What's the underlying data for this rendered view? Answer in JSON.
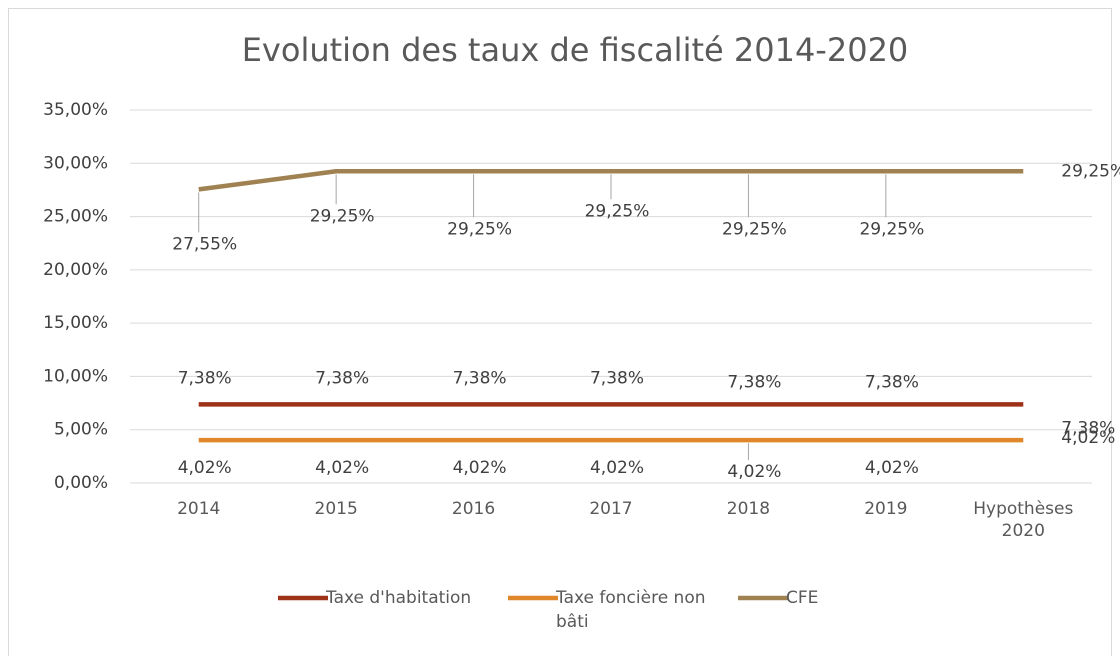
{
  "chart_data": {
    "type": "line",
    "title": "Evolution des taux de fiscalité 2014-2020",
    "categories": [
      "2014",
      "2015",
      "2016",
      "2017",
      "2018",
      "2019",
      "Hypothèses 2020"
    ],
    "series": [
      {
        "name": "Taxe d'habitation",
        "color": "#9e3218",
        "values": [
          7.38,
          7.38,
          7.38,
          7.38,
          7.38,
          7.38,
          7.38
        ],
        "value_labels": [
          "7,38%",
          "7,38%",
          "7,38%",
          "7,38%",
          "7,38%",
          "7,38%",
          "7,38%"
        ]
      },
      {
        "name": "Taxe foncière non bâti",
        "color": "#e0862b",
        "values": [
          4.02,
          4.02,
          4.02,
          4.02,
          4.02,
          4.02,
          4.02
        ],
        "value_labels": [
          "4,02%",
          "4,02%",
          "4,02%",
          "4,02%",
          "4,02%",
          "4,02%",
          "4,02%"
        ]
      },
      {
        "name": "CFE",
        "color": "#a08152",
        "values": [
          27.55,
          29.25,
          29.25,
          29.25,
          29.25,
          29.25,
          29.25
        ],
        "value_labels": [
          "27,55%",
          "29,25%",
          "29,25%",
          "29,25%",
          "29,25%",
          "29,25%",
          "29,25%"
        ]
      }
    ],
    "ylim": [
      0,
      35
    ],
    "yticks": [
      {
        "value": 0,
        "label": "0,00%"
      },
      {
        "value": 5,
        "label": "5,00%"
      },
      {
        "value": 10,
        "label": "10,00%"
      },
      {
        "value": 15,
        "label": "15,00%"
      },
      {
        "value": 20,
        "label": "20,00%"
      },
      {
        "value": 25,
        "label": "25,00%"
      },
      {
        "value": 30,
        "label": "30,00%"
      },
      {
        "value": 35,
        "label": "35,00%"
      }
    ],
    "grid": true,
    "legend": "bottom"
  }
}
